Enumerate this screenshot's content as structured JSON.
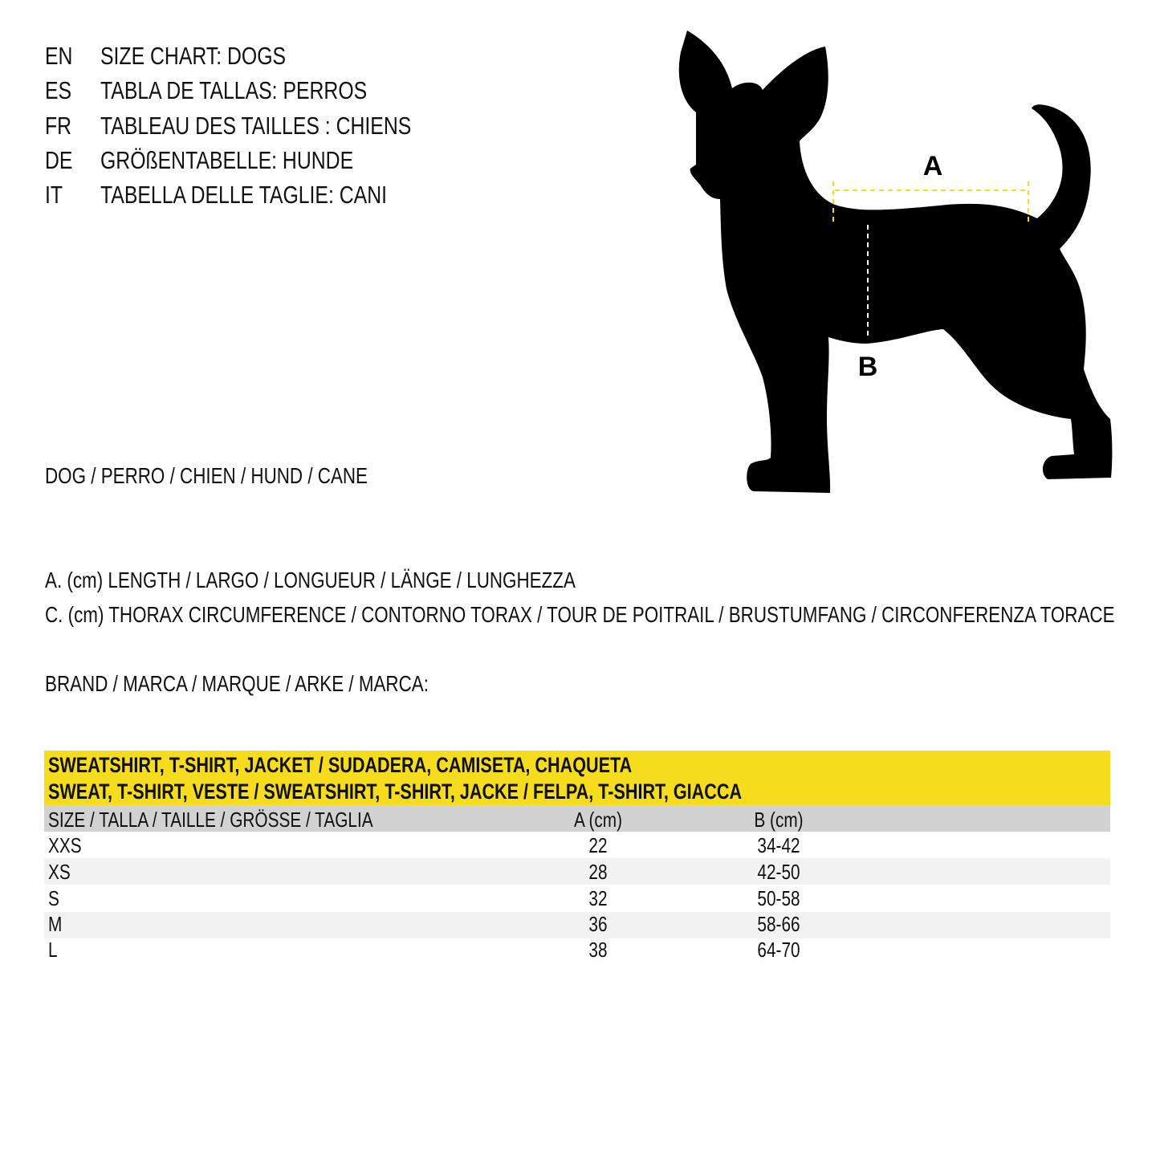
{
  "titles": [
    {
      "lang": "EN",
      "text": "SIZE CHART: DOGS"
    },
    {
      "lang": "ES",
      "text": "TABLA DE TALLAS: PERROS"
    },
    {
      "lang": "FR",
      "text": "TABLEAU DES TAILLES : CHIENS"
    },
    {
      "lang": "DE",
      "text": "GRÖßENTABELLE: HUNDE"
    },
    {
      "lang": "IT",
      "text": "TABELLA DELLE TAGLIE: CANI"
    }
  ],
  "dog_label": "DOG / PERRO / CHIEN / HUND / CANE",
  "legend": {
    "a": "A. (cm) LENGTH / LARGO / LONGUEUR / LÄNGE / LUNGHEZZA",
    "c": "C. (cm) THORAX CIRCUMFERENCE / CONTORNO TORAX / TOUR DE POITRAIL / BRUSTUMFANG / CIRCONFERENZA TORACE"
  },
  "brand_label": "BRAND / MARCA / MARQUE / ARKE / MARCA:",
  "diagram": {
    "label_a": "A",
    "label_b": "B",
    "accent": "#f6dc1e"
  },
  "table": {
    "title_line1": "SWEATSHIRT, T-SHIRT, JACKET / SUDADERA, CAMISETA, CHAQUETA",
    "title_line2": "SWEAT, T-SHIRT, VESTE / SWEATSHIRT, T-SHIRT, JACKE / FELPA, T-SHIRT, GIACCA",
    "headers": [
      "SIZE / TALLA / TAILLE / GRÖSSE / TAGLIA",
      "A (cm)",
      "B (cm)"
    ],
    "rows": [
      [
        "XXS",
        "22",
        "34-42"
      ],
      [
        "XS",
        "28",
        "42-50"
      ],
      [
        "S",
        "32",
        "50-58"
      ],
      [
        "M",
        "36",
        "58-66"
      ],
      [
        "L",
        "38",
        "64-70"
      ]
    ],
    "colors": {
      "title_bg": "#f6dc1e",
      "header_bg": "#d2d2d2",
      "alt_row_bg": "#f2f2f2"
    }
  }
}
